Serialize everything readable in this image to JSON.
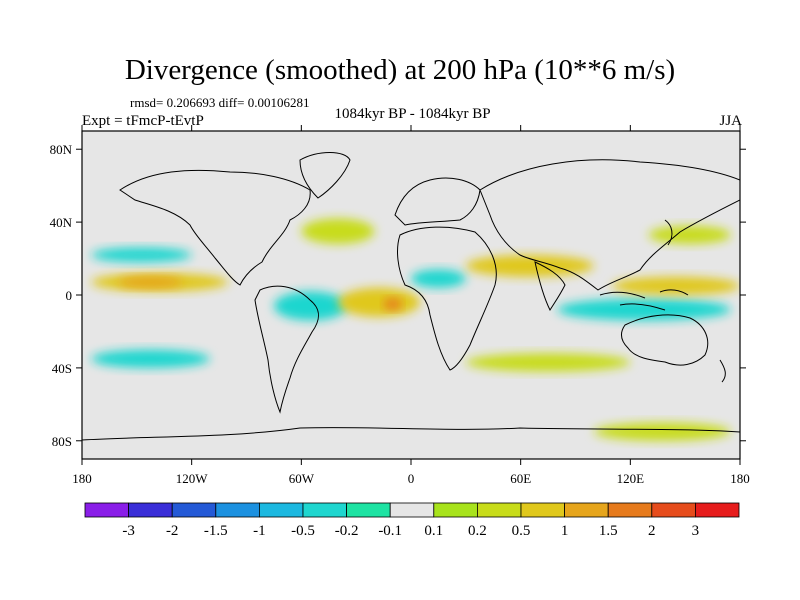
{
  "title": "Divergence (smoothed) at 200 hPa (10**6 m/s)",
  "stats": {
    "rmsd_label": "rmsd=",
    "rmsd": "0.206693",
    "diff_label": "diff=",
    "diff": "0.00106281"
  },
  "experiment": "Expt = tFmcP-tEvtP",
  "period": "1084kyr BP - 1084kyr BP",
  "season": "JJA",
  "axes": {
    "lat_ticks": [
      {
        "value": 80,
        "label": "80N"
      },
      {
        "value": 40,
        "label": "40N"
      },
      {
        "value": 0,
        "label": "0"
      },
      {
        "value": -40,
        "label": "40S"
      },
      {
        "value": -80,
        "label": "80S"
      }
    ],
    "lon_ticks": [
      {
        "value": -180,
        "label": "180"
      },
      {
        "value": -120,
        "label": "120W"
      },
      {
        "value": -60,
        "label": "60W"
      },
      {
        "value": 0,
        "label": "0"
      },
      {
        "value": 60,
        "label": "60E"
      },
      {
        "value": 120,
        "label": "120E"
      },
      {
        "value": 180,
        "label": "180"
      }
    ]
  },
  "colorbar": {
    "colors": [
      "#8a1ee8",
      "#3a2ed8",
      "#2459d6",
      "#1c91e0",
      "#1cb8e0",
      "#1fd6cf",
      "#1ee3a3",
      "#e6e6e6",
      "#a8e31c",
      "#c8dc1a",
      "#e0c81c",
      "#e6a51c",
      "#e67a1c",
      "#e64c1c",
      "#e61c1c"
    ],
    "labels": [
      "-3",
      "-2",
      "-1.5",
      "-1",
      "-0.5",
      "-0.2",
      "-0.1",
      "0.1",
      "0.2",
      "0.5",
      "1",
      "1.5",
      "2",
      "3"
    ]
  },
  "chart_data": {
    "type": "heatmap",
    "title": "Divergence (smoothed) at 200 hPa (10**6 m/s)",
    "xlim": [
      -180,
      180
    ],
    "ylim": [
      -90,
      90
    ],
    "levels": [
      -3,
      -2,
      -1.5,
      -1,
      -0.5,
      -0.2,
      -0.1,
      0.1,
      0.2,
      0.5,
      1,
      1.5,
      2,
      3
    ],
    "regions": [
      {
        "name": "n-atlantic-pos",
        "lon": [
          -60,
          -20
        ],
        "lat": [
          42,
          28
        ],
        "level": 0.2
      },
      {
        "name": "w-pacific-pos",
        "lon": [
          130,
          175
        ],
        "lat": [
          38,
          28
        ],
        "level": 0.2
      },
      {
        "name": "e-pacific-pos-band",
        "lon": [
          -175,
          -100
        ],
        "lat": [
          12,
          2
        ],
        "level": 0.5
      },
      {
        "name": "e-pacific-pos-core",
        "lon": [
          -160,
          -125
        ],
        "lat": [
          10,
          4
        ],
        "level": 1
      },
      {
        "name": "c-pacific-neg",
        "lon": [
          -175,
          -120
        ],
        "lat": [
          26,
          18
        ],
        "level": -0.5
      },
      {
        "name": "s-america-neg",
        "lon": [
          -75,
          -35
        ],
        "lat": [
          2,
          -14
        ],
        "level": -0.5
      },
      {
        "name": "atlantic-pos-band",
        "lon": [
          -40,
          5
        ],
        "lat": [
          4,
          -12
        ],
        "level": 0.5
      },
      {
        "name": "atlantic-pos-core",
        "lon": [
          -15,
          -5
        ],
        "lat": [
          -2,
          -8
        ],
        "level": 1.5
      },
      {
        "name": "n-africa-neg",
        "lon": [
          0,
          30
        ],
        "lat": [
          14,
          4
        ],
        "level": -0.5
      },
      {
        "name": "indian-pos",
        "lon": [
          30,
          100
        ],
        "lat": [
          22,
          10
        ],
        "level": 0.5
      },
      {
        "name": "maritime-neg",
        "lon": [
          80,
          175
        ],
        "lat": [
          -2,
          -14
        ],
        "level": -0.5
      },
      {
        "name": "w-pacific-pos-band",
        "lon": [
          110,
          180
        ],
        "lat": [
          10,
          0
        ],
        "level": 0.5
      },
      {
        "name": "s-pacific-neg",
        "lon": [
          -175,
          -110
        ],
        "lat": [
          -30,
          -40
        ],
        "level": -0.5
      },
      {
        "name": "s-ocean-pos",
        "lon": [
          30,
          120
        ],
        "lat": [
          -32,
          -42
        ],
        "level": 0.2
      },
      {
        "name": "antarctic-pos",
        "lon": [
          100,
          175
        ],
        "lat": [
          -70,
          -80
        ],
        "level": 0.2
      }
    ]
  }
}
